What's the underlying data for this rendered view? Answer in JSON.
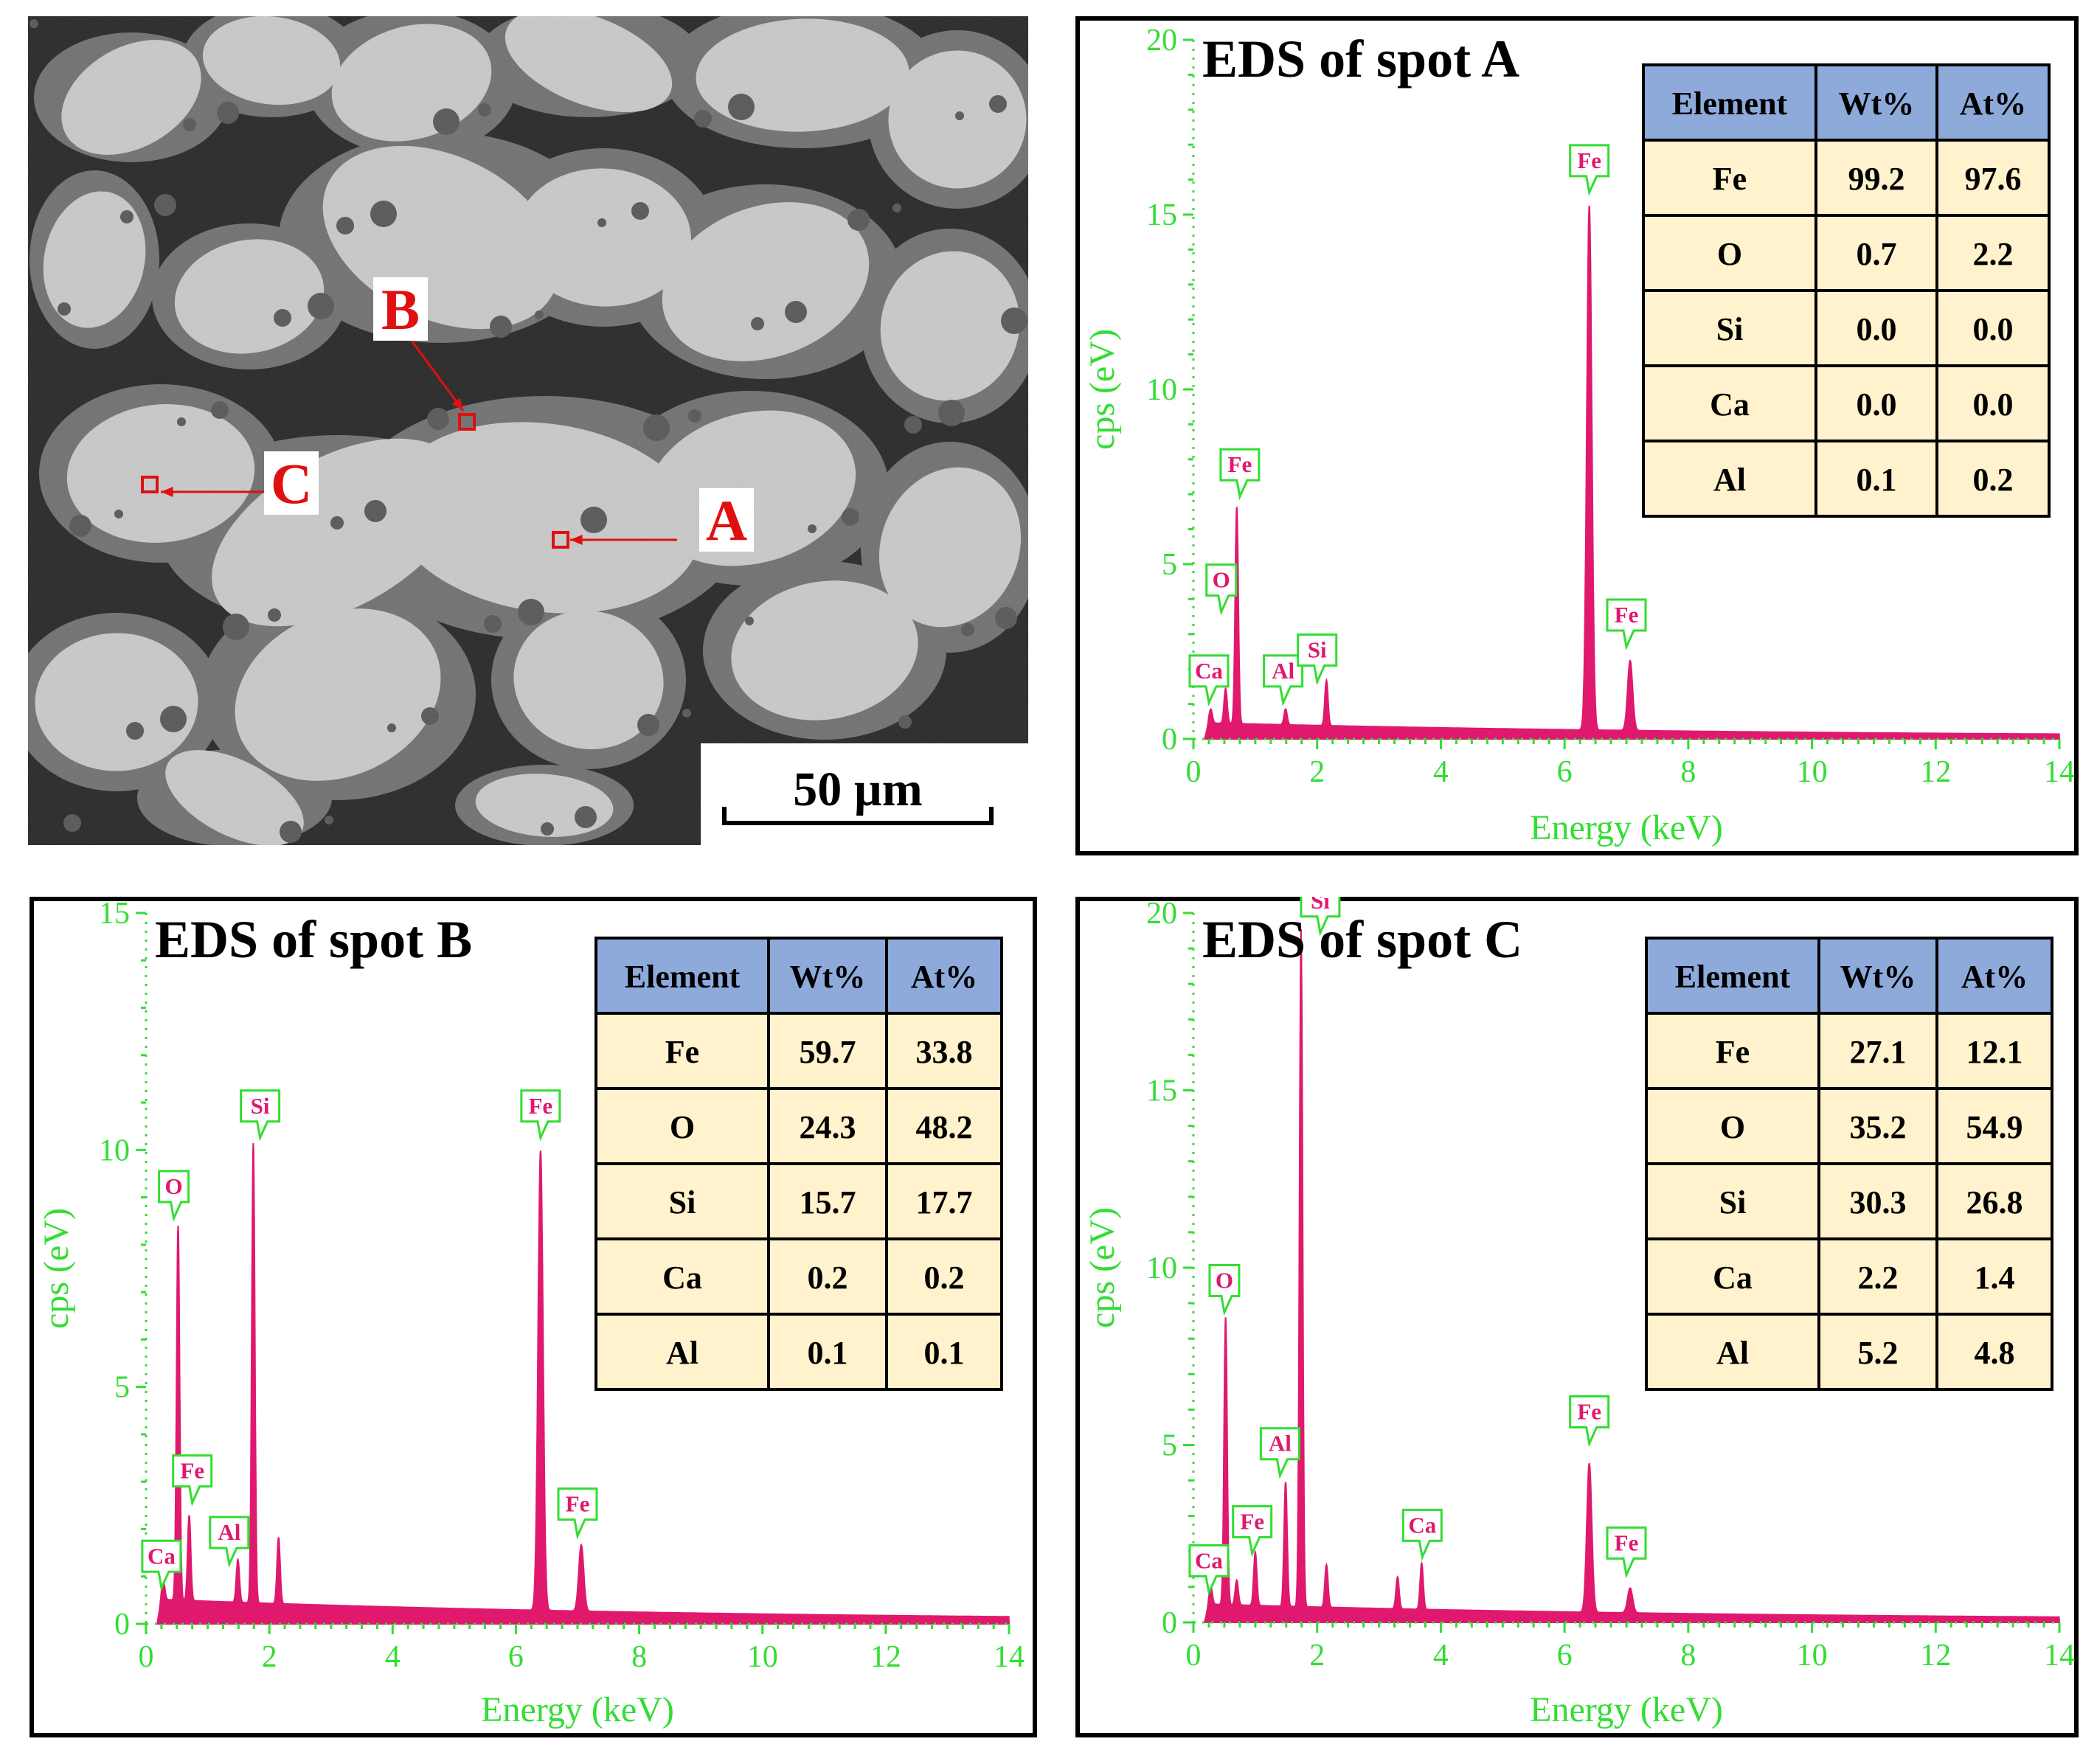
{
  "micrograph": {
    "scale_bar_label": "50 µm",
    "spot_labels": [
      "A",
      "B",
      "C"
    ]
  },
  "colors": {
    "axis": "#33dd33",
    "spectrum": "#e0186e",
    "header_fill": "#8eaadb",
    "cell_fill": "#fff2cc",
    "marker": "#e01010"
  },
  "table_headers": [
    "Element",
    "Wt%",
    "At%"
  ],
  "chart_data": [
    {
      "type": "area",
      "title": "EDS of spot A",
      "xlabel": "Energy (keV)",
      "ylabel": "cps (eV)",
      "xlim": [
        0,
        14
      ],
      "ylim": [
        0,
        20
      ],
      "xticks": [
        0,
        2,
        4,
        6,
        8,
        10,
        12,
        14
      ],
      "yticks": [
        0,
        5,
        10,
        15,
        20
      ],
      "baseline": 0.35,
      "peaks": [
        {
          "x": 0.28,
          "y": 0.4,
          "label": "Ca"
        },
        {
          "x": 0.52,
          "y": 1.0,
          "label": "O"
        },
        {
          "x": 0.7,
          "y": 6.2,
          "label": "Fe"
        },
        {
          "x": 1.49,
          "y": 0.45,
          "label": "Al"
        },
        {
          "x": 2.15,
          "y": 1.3,
          "label": "Si"
        },
        {
          "x": 6.4,
          "y": 15.0,
          "label": "Fe"
        },
        {
          "x": 7.06,
          "y": 2.0,
          "label": "Fe"
        }
      ],
      "callouts": [
        {
          "label": "Ca",
          "x": 0.25,
          "y": 1.5
        },
        {
          "label": "O",
          "x": 0.45,
          "y": 4.1
        },
        {
          "label": "Fe",
          "x": 0.75,
          "y": 7.4
        },
        {
          "label": "Al",
          "x": 1.45,
          "y": 1.5
        },
        {
          "label": "Si",
          "x": 2.0,
          "y": 2.1
        },
        {
          "label": "Fe",
          "x": 6.4,
          "y": 16.1
        },
        {
          "label": "Fe",
          "x": 7.0,
          "y": 3.1
        }
      ],
      "table": [
        {
          "element": "Fe",
          "wt": "99.2",
          "at": "97.6"
        },
        {
          "element": "O",
          "wt": "0.7",
          "at": "2.2"
        },
        {
          "element": "Si",
          "wt": "0.0",
          "at": "0.0"
        },
        {
          "element": "Ca",
          "wt": "0.0",
          "at": "0.0"
        },
        {
          "element": "Al",
          "wt": "0.1",
          "at": "0.2"
        }
      ]
    },
    {
      "type": "area",
      "title": "EDS of spot B",
      "xlabel": "Energy (keV)",
      "ylabel": "cps (eV)",
      "xlim": [
        0,
        14
      ],
      "ylim": [
        0,
        15
      ],
      "xticks": [
        0,
        2,
        4,
        6,
        8,
        10,
        12,
        14
      ],
      "yticks": [
        0,
        5,
        10,
        15
      ],
      "baseline": 0.4,
      "peaks": [
        {
          "x": 0.28,
          "y": 0.4,
          "label": "Ca"
        },
        {
          "x": 0.52,
          "y": 7.9,
          "label": "O"
        },
        {
          "x": 0.7,
          "y": 1.8,
          "label": "Fe"
        },
        {
          "x": 1.49,
          "y": 0.9,
          "label": "Al"
        },
        {
          "x": 1.74,
          "y": 9.7,
          "label": "Si"
        },
        {
          "x": 2.15,
          "y": 1.4,
          "label": ""
        },
        {
          "x": 6.4,
          "y": 9.7,
          "label": "Fe"
        },
        {
          "x": 7.06,
          "y": 1.4,
          "label": "Fe"
        }
      ],
      "callouts": [
        {
          "label": "Ca",
          "x": 0.25,
          "y": 1.1
        },
        {
          "label": "O",
          "x": 0.45,
          "y": 8.9
        },
        {
          "label": "Fe",
          "x": 0.75,
          "y": 2.9
        },
        {
          "label": "Al",
          "x": 1.35,
          "y": 1.6
        },
        {
          "label": "Si",
          "x": 1.85,
          "y": 10.6
        },
        {
          "label": "Fe",
          "x": 6.4,
          "y": 10.6
        },
        {
          "label": "Fe",
          "x": 7.0,
          "y": 2.2
        }
      ],
      "table": [
        {
          "element": "Fe",
          "wt": "59.7",
          "at": "33.8"
        },
        {
          "element": "O",
          "wt": "24.3",
          "at": "48.2"
        },
        {
          "element": "Si",
          "wt": "15.7",
          "at": "17.7"
        },
        {
          "element": "Ca",
          "wt": "0.2",
          "at": "0.2"
        },
        {
          "element": "Al",
          "wt": "0.1",
          "at": "0.1"
        }
      ]
    },
    {
      "type": "area",
      "title": "EDS of spot C",
      "xlabel": "Energy (keV)",
      "ylabel": "cps (eV)",
      "xlim": [
        0,
        14
      ],
      "ylim": [
        0,
        20
      ],
      "xticks": [
        0,
        2,
        4,
        6,
        8,
        10,
        12,
        14
      ],
      "yticks": [
        0,
        5,
        10,
        15,
        20
      ],
      "baseline": 0.4,
      "peaks": [
        {
          "x": 0.28,
          "y": 0.5,
          "label": "Ca"
        },
        {
          "x": 0.52,
          "y": 8.1,
          "label": "O"
        },
        {
          "x": 0.7,
          "y": 0.7,
          "label": ""
        },
        {
          "x": 1.0,
          "y": 1.5,
          "label": "Fe"
        },
        {
          "x": 1.49,
          "y": 3.5,
          "label": "Al"
        },
        {
          "x": 1.74,
          "y": 19.1,
          "label": "Si"
        },
        {
          "x": 2.15,
          "y": 1.2,
          "label": ""
        },
        {
          "x": 3.3,
          "y": 0.9,
          "label": ""
        },
        {
          "x": 3.69,
          "y": 1.3,
          "label": "Ca"
        },
        {
          "x": 6.4,
          "y": 4.2,
          "label": "Fe"
        },
        {
          "x": 7.06,
          "y": 0.7,
          "label": "Fe"
        }
      ],
      "callouts": [
        {
          "label": "Ca",
          "x": 0.25,
          "y": 1.3
        },
        {
          "label": "O",
          "x": 0.5,
          "y": 9.2
        },
        {
          "label": "Fe",
          "x": 0.95,
          "y": 2.4
        },
        {
          "label": "Al",
          "x": 1.4,
          "y": 4.6
        },
        {
          "label": "Si",
          "x": 2.05,
          "y": 19.9
        },
        {
          "label": "Ca",
          "x": 3.7,
          "y": 2.3
        },
        {
          "label": "Fe",
          "x": 6.4,
          "y": 5.5
        },
        {
          "label": "Fe",
          "x": 7.0,
          "y": 1.8
        }
      ],
      "table": [
        {
          "element": "Fe",
          "wt": "27.1",
          "at": "12.1"
        },
        {
          "element": "O",
          "wt": "35.2",
          "at": "54.9"
        },
        {
          "element": "Si",
          "wt": "30.3",
          "at": "26.8"
        },
        {
          "element": "Ca",
          "wt": "2.2",
          "at": "1.4"
        },
        {
          "element": "Al",
          "wt": "5.2",
          "at": "4.8"
        }
      ]
    }
  ]
}
